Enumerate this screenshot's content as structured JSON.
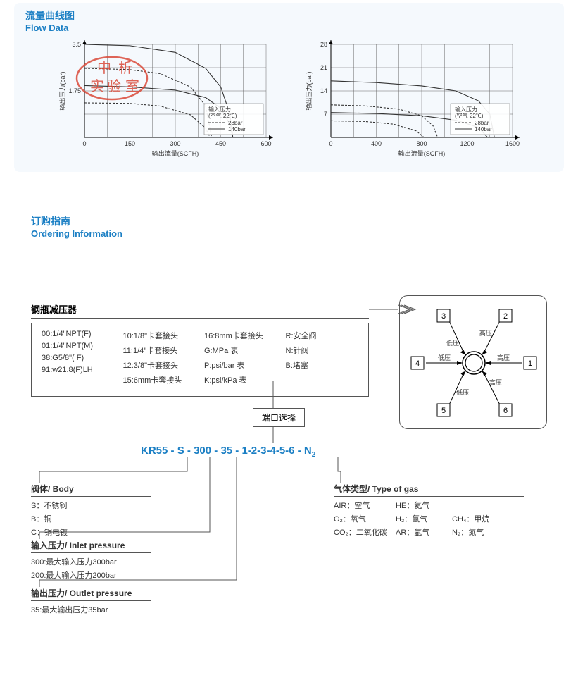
{
  "flow": {
    "title_cn": "流量曲线图",
    "title_en": "Flow Data",
    "chart1": {
      "yticks": [
        0,
        1.75,
        3.5
      ],
      "ymax": 3.5,
      "xticks": [
        0,
        150,
        300,
        450,
        600
      ],
      "xmax": 600,
      "ylabel": "输出压力(bar)",
      "xlabel": "输出流量(SCFH)",
      "legend_title": "输入压力",
      "legend_sub": "(空气 22℃)",
      "legend_items": [
        {
          "label": "28bar",
          "dash": "3,2"
        },
        {
          "label": "140bar",
          "dash": ""
        }
      ],
      "series": [
        {
          "dash": "",
          "pts": [
            [
              0,
              3.5
            ],
            [
              150,
              3.45
            ],
            [
              300,
              3.2
            ],
            [
              400,
              2.6
            ],
            [
              450,
              1.9
            ],
            [
              480,
              0.9
            ],
            [
              490,
              0
            ]
          ]
        },
        {
          "dash": "3,2",
          "pts": [
            [
              0,
              2.6
            ],
            [
              150,
              2.55
            ],
            [
              250,
              2.4
            ],
            [
              350,
              1.9
            ],
            [
              400,
              1.2
            ],
            [
              420,
              0
            ]
          ]
        },
        {
          "dash": "",
          "pts": [
            [
              0,
              1.95
            ],
            [
              150,
              1.9
            ],
            [
              300,
              1.78
            ],
            [
              400,
              1.5
            ],
            [
              450,
              1.1
            ],
            [
              480,
              0.5
            ],
            [
              490,
              0
            ]
          ]
        },
        {
          "dash": "3,2",
          "pts": [
            [
              0,
              1.3
            ],
            [
              150,
              1.28
            ],
            [
              250,
              1.18
            ],
            [
              350,
              0.85
            ],
            [
              400,
              0.35
            ],
            [
              415,
              0
            ]
          ]
        }
      ],
      "grid_color": "#666",
      "axis_color": "#000",
      "line_color": "#333",
      "bg": "#f5f9fd",
      "font_tick": 9,
      "font_label": 9,
      "font_legend": 8
    },
    "chart2": {
      "yticks": [
        0,
        7,
        14,
        21,
        28
      ],
      "ymax": 28,
      "xticks": [
        0,
        400,
        800,
        1200,
        1600
      ],
      "xmax": 1600,
      "ylabel": "输出压力(bar)",
      "xlabel": "输出流量(SCFH)",
      "legend_title": "输入压力",
      "legend_sub": "(空气 22℃)",
      "legend_items": [
        {
          "label": "28bar",
          "dash": "3,2"
        },
        {
          "label": "140bar",
          "dash": ""
        }
      ],
      "series": [
        {
          "dash": "",
          "pts": [
            [
              0,
              17
            ],
            [
              400,
              16.5
            ],
            [
              800,
              15.5
            ],
            [
              1100,
              14
            ],
            [
              1300,
              11
            ],
            [
              1400,
              7
            ],
            [
              1440,
              0
            ]
          ]
        },
        {
          "dash": "3,2",
          "pts": [
            [
              0,
              9.8
            ],
            [
              300,
              9.5
            ],
            [
              600,
              8.5
            ],
            [
              800,
              6.5
            ],
            [
              900,
              3.5
            ],
            [
              940,
              0
            ]
          ]
        },
        {
          "dash": "",
          "pts": [
            [
              0,
              7.5
            ],
            [
              400,
              7.2
            ],
            [
              800,
              6.5
            ],
            [
              1100,
              5.2
            ],
            [
              1300,
              3
            ],
            [
              1380,
              0
            ]
          ]
        },
        {
          "dash": "3,2",
          "pts": [
            [
              0,
              5
            ],
            [
              300,
              4.8
            ],
            [
              550,
              4
            ],
            [
              750,
              2
            ],
            [
              820,
              0
            ]
          ]
        }
      ],
      "grid_color": "#666",
      "axis_color": "#000",
      "line_color": "#333",
      "bg": "#f5f9fd",
      "font_tick": 9,
      "font_label": 9,
      "font_legend": 8
    },
    "watermark_color": "#d94a3a"
  },
  "ordering": {
    "title_cn": "订购指南",
    "title_en": "Ordering Information"
  },
  "main_box": {
    "title": "钢瓶减压器",
    "col1": [
      "00:1/4\"NPT(F)",
      "01:1/4\"NPT(M)",
      "38:G5/8\"( F)",
      "91:w21.8(F)LH"
    ],
    "col2": [
      "10:1/8\"卡套接头",
      "11:1/4\"卡套接头",
      "12:3/8\"卡套接头",
      "15:6mm卡套接头"
    ],
    "col3": [
      "16:8mm卡套接头",
      "G:MPa 表",
      "P:psi/bar 表",
      "K:psi/kPa 表"
    ],
    "col4": [
      "R:安全阀",
      "N:针阀",
      "B:堵塞"
    ]
  },
  "port_label": "端口选择",
  "ports": {
    "labels": {
      "1": "1",
      "2": "2",
      "3": "3",
      "4": "4",
      "5": "5",
      "6": "6"
    },
    "text": {
      "high": "高压",
      "low": "低压"
    }
  },
  "code": {
    "parts": [
      "KR55",
      "-",
      "S",
      "-",
      "300",
      "-",
      "35",
      "-",
      "1-2-3-4-5-6",
      "-",
      "N"
    ],
    "sub": "2"
  },
  "body_box": {
    "title": "阀体/ Body",
    "rows": [
      "S：不锈钢",
      "B：铜",
      "C：铜电镀"
    ]
  },
  "inlet_box": {
    "title": "输入压力/ Inlet pressure",
    "rows": [
      "300:最大输入压力300bar",
      "200:最大输入压力200bar"
    ]
  },
  "outlet_box": {
    "title": "输出压力/ Outlet pressure",
    "rows": [
      "35:最大输出压力35bar"
    ]
  },
  "gas_box": {
    "title": "气体类型/ Type of gas",
    "grid": [
      "AIR：空气",
      "HE：氦气",
      "",
      "O₂：氧气",
      "H₂：氢气",
      "CH₄：甲烷",
      "CO₂：二氧化碳",
      "AR：氩气",
      "N₂：氮气"
    ]
  },
  "lines": {
    "color": "#555"
  }
}
